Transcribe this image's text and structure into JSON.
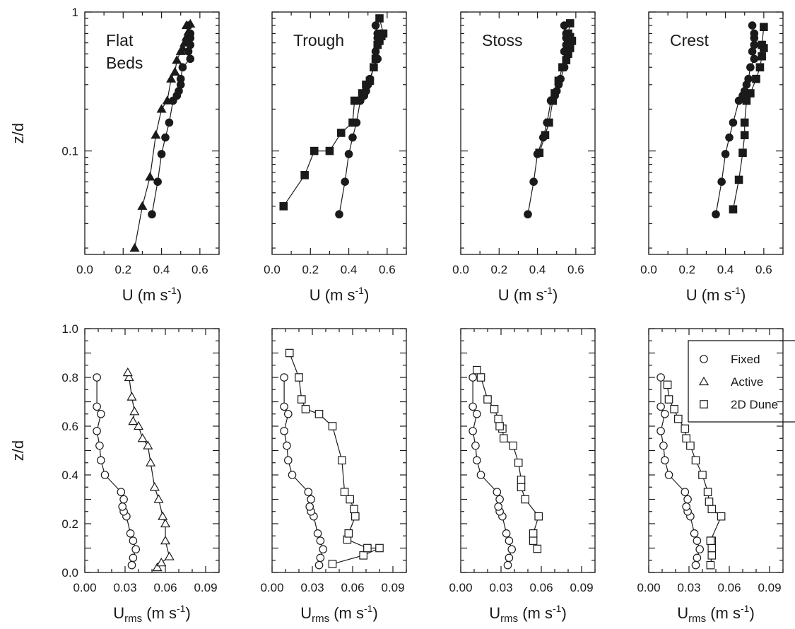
{
  "chart_data": [
    {
      "type": "scatter",
      "row": "top",
      "title": [
        "Flat",
        "Beds"
      ],
      "xlabel": "U (m s",
      "xlabel_sup": "-1",
      "xlabel_close": ")",
      "ylabel": "z/d",
      "xlim": [
        0,
        0.7
      ],
      "ylim": [
        0.018,
        1
      ],
      "yscale": "log",
      "xticks": [
        "0.0",
        "0.2",
        "0.4",
        "0.6"
      ],
      "yticks": [
        "1",
        "0.1"
      ],
      "series": [
        {
          "name": "Fixed",
          "marker": "circle-filled",
          "x": [
            0.35,
            0.38,
            0.4,
            0.42,
            0.44,
            0.46,
            0.48,
            0.49,
            0.5,
            0.5,
            0.51,
            0.55,
            0.54,
            0.55,
            0.55,
            0.55,
            0.54
          ],
          "y": [
            0.035,
            0.06,
            0.095,
            0.125,
            0.16,
            0.23,
            0.25,
            0.27,
            0.3,
            0.33,
            0.4,
            0.46,
            0.52,
            0.58,
            0.65,
            0.7,
            0.8
          ]
        },
        {
          "name": "Active",
          "marker": "triangle-filled",
          "x": [
            0.26,
            0.3,
            0.34,
            0.37,
            0.4,
            0.43,
            0.45,
            0.47,
            0.48,
            0.5,
            0.51,
            0.52,
            0.53,
            0.53,
            0.54,
            0.53,
            0.55
          ],
          "y": [
            0.02,
            0.04,
            0.065,
            0.13,
            0.2,
            0.23,
            0.33,
            0.37,
            0.45,
            0.52,
            0.55,
            0.6,
            0.62,
            0.66,
            0.72,
            0.8,
            0.82
          ]
        }
      ]
    },
    {
      "type": "scatter",
      "row": "top",
      "title": [
        "Trough"
      ],
      "xlabel": "U (m s",
      "xlabel_sup": "-1",
      "xlabel_close": ")",
      "xlim": [
        0,
        0.7
      ],
      "ylim": [
        0.018,
        1
      ],
      "yscale": "log",
      "xticks": [
        "0.0",
        "0.2",
        "0.4",
        "0.6"
      ],
      "series": [
        {
          "name": "Fixed",
          "marker": "circle-filled",
          "x": [
            0.35,
            0.38,
            0.4,
            0.42,
            0.44,
            0.46,
            0.48,
            0.49,
            0.5,
            0.51,
            0.53,
            0.55,
            0.54,
            0.55,
            0.55,
            0.55,
            0.54
          ],
          "y": [
            0.035,
            0.06,
            0.095,
            0.125,
            0.16,
            0.23,
            0.25,
            0.27,
            0.3,
            0.33,
            0.4,
            0.46,
            0.52,
            0.58,
            0.65,
            0.7,
            0.8
          ]
        },
        {
          "name": "2D Dune",
          "marker": "square-filled",
          "x": [
            0.06,
            0.17,
            0.22,
            0.3,
            0.36,
            0.42,
            0.43,
            0.47,
            0.49,
            0.51,
            0.53,
            0.54,
            0.55,
            0.56,
            0.57,
            0.58,
            0.56
          ],
          "y": [
            0.04,
            0.067,
            0.1,
            0.1,
            0.135,
            0.16,
            0.23,
            0.26,
            0.3,
            0.32,
            0.4,
            0.46,
            0.58,
            0.62,
            0.67,
            0.7,
            0.9
          ]
        }
      ]
    },
    {
      "type": "scatter",
      "row": "top",
      "title": [
        "Stoss"
      ],
      "xlabel": "U (m s",
      "xlabel_sup": "-1",
      "xlabel_close": ")",
      "xlim": [
        0,
        0.7
      ],
      "ylim": [
        0.018,
        1
      ],
      "yscale": "log",
      "xticks": [
        "0.0",
        "0.2",
        "0.4",
        "0.6"
      ],
      "series": [
        {
          "name": "Fixed",
          "marker": "circle-filled",
          "x": [
            0.35,
            0.38,
            0.4,
            0.43,
            0.45,
            0.47,
            0.49,
            0.5,
            0.51,
            0.52,
            0.54,
            0.55,
            0.54,
            0.55,
            0.55,
            0.55,
            0.54
          ],
          "y": [
            0.035,
            0.06,
            0.095,
            0.125,
            0.16,
            0.23,
            0.25,
            0.27,
            0.3,
            0.33,
            0.4,
            0.46,
            0.52,
            0.58,
            0.65,
            0.7,
            0.8
          ]
        },
        {
          "name": "2D Dune",
          "marker": "square-filled",
          "x": [
            0.41,
            0.44,
            0.46,
            0.48,
            0.49,
            0.51,
            0.53,
            0.55,
            0.56,
            0.57,
            0.57,
            0.58,
            0.57,
            0.56,
            0.57
          ],
          "y": [
            0.097,
            0.13,
            0.16,
            0.23,
            0.26,
            0.32,
            0.4,
            0.45,
            0.5,
            0.55,
            0.58,
            0.62,
            0.66,
            0.7,
            0.83
          ]
        }
      ]
    },
    {
      "type": "scatter",
      "row": "top",
      "title": [
        "Crest"
      ],
      "xlabel": "U (m s",
      "xlabel_sup": "-1",
      "xlabel_close": ")",
      "xlim": [
        0,
        0.7
      ],
      "ylim": [
        0.018,
        1
      ],
      "yscale": "log",
      "xticks": [
        "0.0",
        "0.2",
        "0.4",
        "0.6"
      ],
      "series": [
        {
          "name": "Fixed",
          "marker": "circle-filled",
          "x": [
            0.35,
            0.38,
            0.4,
            0.42,
            0.44,
            0.47,
            0.49,
            0.5,
            0.51,
            0.52,
            0.53,
            0.55,
            0.54,
            0.55,
            0.55,
            0.55,
            0.54
          ],
          "y": [
            0.035,
            0.06,
            0.095,
            0.125,
            0.16,
            0.23,
            0.25,
            0.27,
            0.3,
            0.33,
            0.4,
            0.46,
            0.52,
            0.58,
            0.65,
            0.7,
            0.8
          ]
        },
        {
          "name": "2D Dune",
          "marker": "square-filled",
          "x": [
            0.44,
            0.47,
            0.49,
            0.5,
            0.5,
            0.51,
            0.53,
            0.56,
            0.58,
            0.59,
            0.6,
            0.59,
            0.6
          ],
          "y": [
            0.038,
            0.062,
            0.097,
            0.13,
            0.16,
            0.23,
            0.26,
            0.33,
            0.4,
            0.48,
            0.55,
            0.58,
            0.78
          ]
        }
      ]
    },
    {
      "type": "scatter",
      "row": "bottom",
      "xlabel": "U",
      "xlabel_sub": "rms",
      "xlabel_rest": " (m s",
      "xlabel_sup": "-1",
      "xlabel_close": ")",
      "ylabel": "z/d",
      "xlim": [
        0,
        0.1
      ],
      "ylim": [
        0,
        1.0
      ],
      "xticks": [
        "0.00",
        "0.03",
        "0.06",
        "0.09"
      ],
      "yticks": [
        "0.0",
        "0.2",
        "0.4",
        "0.6",
        "0.8",
        "1.0"
      ],
      "series": [
        {
          "name": "Fixed",
          "marker": "circle-open",
          "x": [
            0.035,
            0.036,
            0.038,
            0.036,
            0.034,
            0.031,
            0.029,
            0.028,
            0.029,
            0.027,
            0.015,
            0.012,
            0.011,
            0.009,
            0.012,
            0.009,
            0.009
          ],
          "y": [
            0.03,
            0.06,
            0.095,
            0.13,
            0.16,
            0.23,
            0.25,
            0.27,
            0.3,
            0.33,
            0.4,
            0.46,
            0.52,
            0.58,
            0.65,
            0.68,
            0.8
          ]
        },
        {
          "name": "Active",
          "marker": "triangle-open",
          "x": [
            0.054,
            0.057,
            0.063,
            0.06,
            0.06,
            0.058,
            0.055,
            0.052,
            0.049,
            0.047,
            0.043,
            0.04,
            0.036,
            0.037,
            0.035,
            0.033,
            0.032
          ],
          "y": [
            0.02,
            0.04,
            0.065,
            0.13,
            0.2,
            0.23,
            0.3,
            0.35,
            0.45,
            0.52,
            0.55,
            0.6,
            0.62,
            0.66,
            0.72,
            0.8,
            0.82
          ]
        }
      ]
    },
    {
      "type": "scatter",
      "row": "bottom",
      "xlabel": "U",
      "xlabel_sub": "rms",
      "xlabel_rest": " (m s",
      "xlabel_sup": "-1",
      "xlabel_close": ")",
      "xlim": [
        0,
        0.1
      ],
      "ylim": [
        0,
        1.0
      ],
      "xticks": [
        "0.00",
        "0.03",
        "0.06",
        "0.09"
      ],
      "series": [
        {
          "name": "Fixed",
          "marker": "circle-open",
          "x": [
            0.035,
            0.036,
            0.038,
            0.036,
            0.034,
            0.031,
            0.029,
            0.028,
            0.029,
            0.027,
            0.015,
            0.012,
            0.011,
            0.009,
            0.012,
            0.009,
            0.009
          ],
          "y": [
            0.03,
            0.06,
            0.095,
            0.13,
            0.16,
            0.23,
            0.25,
            0.27,
            0.3,
            0.33,
            0.4,
            0.46,
            0.52,
            0.58,
            0.65,
            0.68,
            0.8
          ]
        },
        {
          "name": "2D Dune",
          "marker": "square-open",
          "x": [
            0.045,
            0.068,
            0.08,
            0.071,
            0.056,
            0.057,
            0.062,
            0.061,
            0.058,
            0.054,
            0.052,
            0.045,
            0.035,
            0.025,
            0.022,
            0.02,
            0.013
          ],
          "y": [
            0.035,
            0.07,
            0.1,
            0.1,
            0.135,
            0.16,
            0.23,
            0.26,
            0.3,
            0.33,
            0.46,
            0.6,
            0.65,
            0.67,
            0.71,
            0.8,
            0.9
          ]
        }
      ]
    },
    {
      "type": "scatter",
      "row": "bottom",
      "xlabel": "U",
      "xlabel_sub": "rms",
      "xlabel_rest": " (m s",
      "xlabel_sup": "-1",
      "xlabel_close": ")",
      "xlim": [
        0,
        0.1
      ],
      "ylim": [
        0,
        1.0
      ],
      "xticks": [
        "0.00",
        "0.03",
        "0.06",
        "0.09"
      ],
      "series": [
        {
          "name": "Fixed",
          "marker": "circle-open",
          "x": [
            0.035,
            0.036,
            0.038,
            0.036,
            0.034,
            0.031,
            0.029,
            0.028,
            0.029,
            0.027,
            0.015,
            0.012,
            0.011,
            0.009,
            0.012,
            0.009,
            0.009
          ],
          "y": [
            0.03,
            0.06,
            0.095,
            0.13,
            0.16,
            0.23,
            0.25,
            0.27,
            0.3,
            0.33,
            0.4,
            0.46,
            0.52,
            0.58,
            0.65,
            0.68,
            0.8
          ]
        },
        {
          "name": "2D Dune",
          "marker": "square-open",
          "x": [
            0.057,
            0.054,
            0.054,
            0.058,
            0.048,
            0.045,
            0.045,
            0.043,
            0.039,
            0.032,
            0.031,
            0.029,
            0.028,
            0.025,
            0.02,
            0.015,
            0.012
          ],
          "y": [
            0.097,
            0.13,
            0.16,
            0.23,
            0.3,
            0.35,
            0.38,
            0.45,
            0.52,
            0.55,
            0.59,
            0.6,
            0.63,
            0.67,
            0.71,
            0.8,
            0.83
          ]
        }
      ]
    },
    {
      "type": "scatter",
      "row": "bottom",
      "xlabel": "U",
      "xlabel_sub": "rms",
      "xlabel_rest": " (m s",
      "xlabel_sup": "-1",
      "xlabel_close": ")",
      "xlim": [
        0,
        0.1
      ],
      "ylim": [
        0,
        1.0
      ],
      "xticks": [
        "0.00",
        "0.03",
        "0.06",
        "0.09"
      ],
      "legend": {
        "position": "top-right",
        "entries": [
          {
            "label": "Fixed",
            "marker": "circle-open"
          },
          {
            "label": "Active",
            "marker": "triangle-open"
          },
          {
            "label": "2D Dune",
            "marker": "square-open"
          }
        ]
      },
      "series": [
        {
          "name": "Fixed",
          "marker": "circle-open",
          "x": [
            0.035,
            0.036,
            0.038,
            0.036,
            0.034,
            0.031,
            0.029,
            0.028,
            0.029,
            0.027,
            0.015,
            0.012,
            0.011,
            0.009,
            0.012,
            0.009,
            0.009
          ],
          "y": [
            0.03,
            0.06,
            0.095,
            0.13,
            0.16,
            0.23,
            0.25,
            0.27,
            0.3,
            0.33,
            0.4,
            0.46,
            0.52,
            0.58,
            0.65,
            0.68,
            0.8
          ]
        },
        {
          "name": "2D Dune",
          "marker": "square-open",
          "x": [
            0.046,
            0.047,
            0.047,
            0.047,
            0.046,
            0.054,
            0.047,
            0.045,
            0.044,
            0.04,
            0.035,
            0.031,
            0.028,
            0.027,
            0.022,
            0.019,
            0.015,
            0.014
          ],
          "y": [
            0.03,
            0.07,
            0.1,
            0.13,
            0.13,
            0.23,
            0.26,
            0.29,
            0.33,
            0.4,
            0.46,
            0.52,
            0.55,
            0.59,
            0.63,
            0.67,
            0.71,
            0.77
          ]
        }
      ]
    }
  ]
}
